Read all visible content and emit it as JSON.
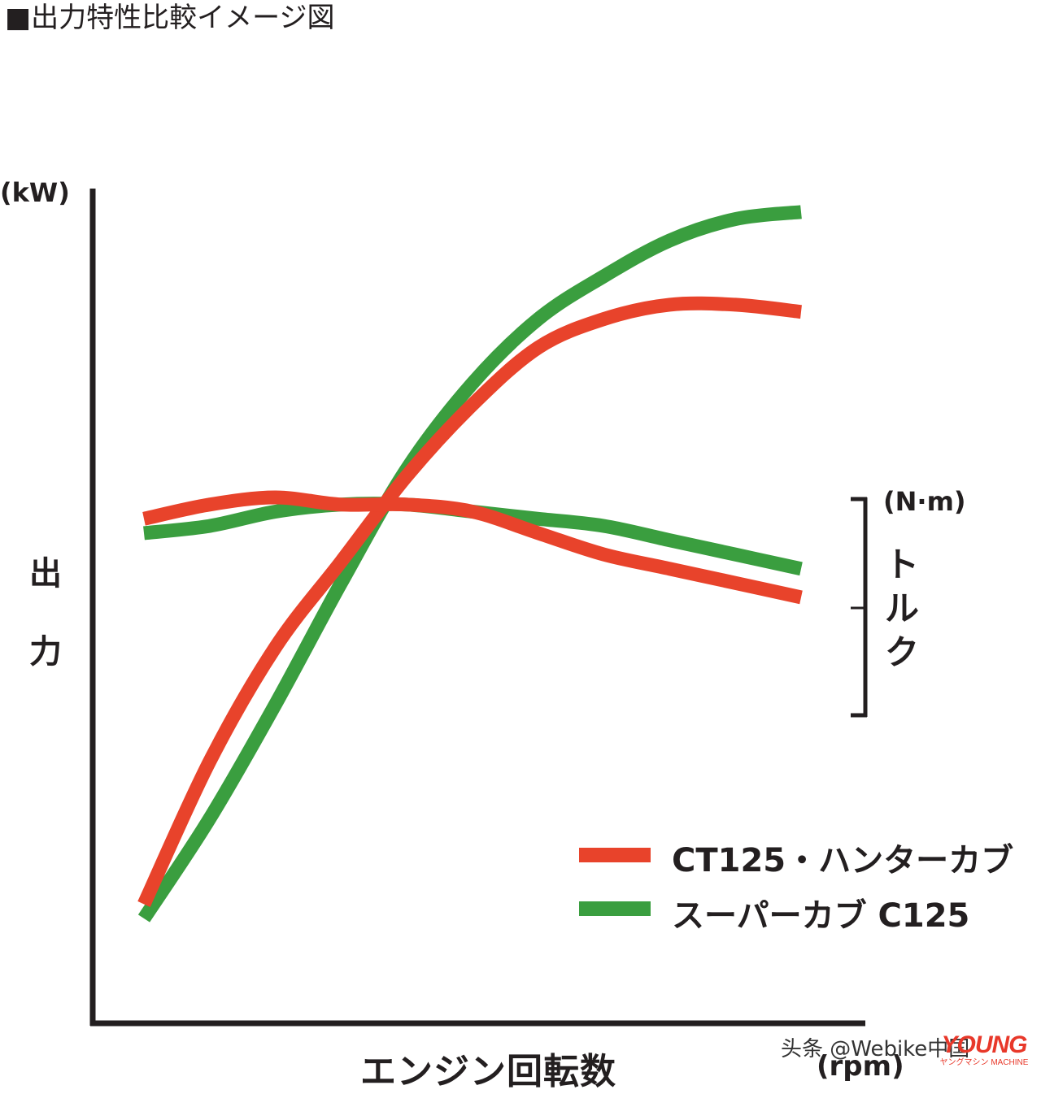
{
  "title": "■出力特性比較イメージ図",
  "chart_data": {
    "type": "line",
    "xlabel": "エンジン回転数",
    "x_unit": "(rpm)",
    "ylabel_left": "出力",
    "ylabel_left_unit": "(kW)",
    "ylabel_right": "トルク",
    "ylabel_right_unit": "(N·m)",
    "grid": false,
    "ticks": "none",
    "legend": {
      "position": "bottom-right",
      "entries": [
        {
          "label": "CT125・ハンターカブ",
          "color": "#e8432b"
        },
        {
          "label": "スーパーカブ C125",
          "color": "#3a9e3f"
        }
      ]
    },
    "x": [
      0,
      0.1,
      0.2,
      0.3,
      0.4,
      0.5,
      0.6,
      0.7,
      0.8,
      0.9,
      1.0
    ],
    "series": [
      {
        "name": "CT125・ハンターカブ",
        "quantity": "power",
        "color": "#e8432b",
        "values": [
          0.02,
          0.22,
          0.38,
          0.5,
          0.62,
          0.72,
          0.8,
          0.84,
          0.86,
          0.86,
          0.85
        ]
      },
      {
        "name": "スーパーカブ C125",
        "quantity": "power",
        "color": "#3a9e3f",
        "values": [
          0.0,
          0.14,
          0.3,
          0.47,
          0.63,
          0.75,
          0.84,
          0.9,
          0.95,
          0.98,
          0.99
        ]
      },
      {
        "name": "CT125・ハンターカブ",
        "quantity": "torque",
        "color": "#e8432b",
        "values": [
          0.56,
          0.58,
          0.59,
          0.58,
          0.58,
          0.57,
          0.54,
          0.51,
          0.49,
          0.47,
          0.45
        ]
      },
      {
        "name": "スーパーカブ C125",
        "quantity": "torque",
        "color": "#3a9e3f",
        "values": [
          0.54,
          0.55,
          0.57,
          0.58,
          0.58,
          0.57,
          0.56,
          0.55,
          0.53,
          0.51,
          0.49
        ]
      }
    ]
  },
  "watermark": "头条 @Webike中国",
  "magazine_logo": {
    "main": "YOUNG",
    "sub": "ヤングマシン MACHINE"
  }
}
